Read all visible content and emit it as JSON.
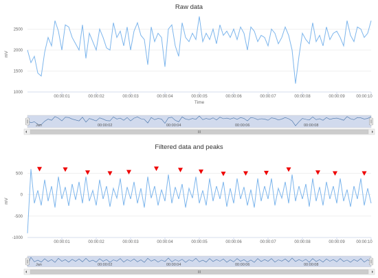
{
  "chart_data": [
    {
      "type": "line",
      "title": "Raw data",
      "xlabel": "Time",
      "ylabel": "mV",
      "ylim": [
        1000,
        2800
      ],
      "yticks": [
        1000,
        1500,
        2000,
        2500
      ],
      "x_range": [
        0,
        10
      ],
      "xticks": [
        "00:00:01",
        "00:00:02",
        "00:00:03",
        "00:00:04",
        "00:00:05",
        "00:00:06",
        "00:00:07",
        "00:00:08",
        "00:00:09",
        "00:00:10"
      ],
      "series": [
        {
          "color": "#7cb5ec",
          "x": [
            0,
            0.1,
            0.2,
            0.3,
            0.4,
            0.5,
            0.6,
            0.7,
            0.8,
            0.9,
            1.0,
            1.1,
            1.2,
            1.3,
            1.4,
            1.5,
            1.6,
            1.7,
            1.8,
            1.9,
            2.0,
            2.1,
            2.2,
            2.3,
            2.4,
            2.5,
            2.6,
            2.7,
            2.8,
            2.9,
            3.0,
            3.1,
            3.2,
            3.3,
            3.4,
            3.5,
            3.6,
            3.7,
            3.8,
            3.9,
            4.0,
            4.1,
            4.2,
            4.3,
            4.4,
            4.5,
            4.6,
            4.7,
            4.8,
            4.9,
            5.0,
            5.1,
            5.2,
            5.3,
            5.4,
            5.5,
            5.6,
            5.7,
            5.8,
            5.9,
            6.0,
            6.1,
            6.2,
            6.3,
            6.4,
            6.5,
            6.6,
            6.7,
            6.8,
            6.9,
            7.0,
            7.1,
            7.2,
            7.3,
            7.4,
            7.5,
            7.6,
            7.7,
            7.8,
            7.9,
            8.0,
            8.1,
            8.2,
            8.3,
            8.4,
            8.5,
            8.6,
            8.7,
            8.8,
            8.9,
            9.0,
            9.1,
            9.2,
            9.3,
            9.4,
            9.5,
            9.6,
            9.7,
            9.8,
            9.9,
            10.0
          ],
          "values": [
            2000,
            1700,
            1850,
            1450,
            1380,
            1950,
            2300,
            2100,
            2700,
            2450,
            2000,
            2600,
            2550,
            2300,
            2150,
            2000,
            2600,
            1800,
            2400,
            2200,
            2000,
            2500,
            2300,
            2050,
            2000,
            2650,
            2300,
            2450,
            2100,
            2550,
            2000,
            2450,
            2650,
            2350,
            2250,
            1650,
            2550,
            2200,
            2400,
            2300,
            1600,
            2500,
            2600,
            2100,
            1850,
            2650,
            2300,
            2200,
            2400,
            2250,
            2800,
            2200,
            2400,
            2250,
            2500,
            2150,
            2600,
            2350,
            2450,
            2300,
            2500,
            2250,
            2550,
            2400,
            2000,
            2550,
            2450,
            2200,
            2350,
            2300,
            2100,
            2500,
            2400,
            2150,
            2300,
            2550,
            2350,
            2000,
            1200,
            1850,
            2400,
            2250,
            2150,
            2650,
            2200,
            2350,
            2100,
            2550,
            2250,
            2400,
            2450,
            2300,
            2100,
            2700,
            2350,
            2200,
            2550,
            2500,
            2300,
            2400,
            2700
          ]
        }
      ],
      "navigator": {
        "labels": [
          "Jan",
          "00:00:02",
          "00:00:04",
          "00:00:06",
          "00:00:08"
        ]
      }
    },
    {
      "type": "line",
      "title": "Filtered data and peaks",
      "xlabel": "",
      "ylabel": "mV",
      "ylim": [
        -1000,
        700
      ],
      "yticks": [
        -1000,
        -500,
        0,
        500
      ],
      "x_range": [
        0,
        10
      ],
      "xticks": [
        "00:00:01",
        "00:00:02",
        "00:00:03",
        "00:00:04",
        "00:00:05",
        "00:00:06",
        "00:00:07",
        "00:00:08",
        "00:00:09",
        "00:00:10"
      ],
      "series": [
        {
          "color": "#7cb5ec",
          "x": [
            0,
            0.1,
            0.2,
            0.3,
            0.4,
            0.5,
            0.6,
            0.7,
            0.8,
            0.9,
            1.0,
            1.1,
            1.2,
            1.3,
            1.4,
            1.5,
            1.6,
            1.7,
            1.8,
            1.9,
            2.0,
            2.1,
            2.2,
            2.3,
            2.4,
            2.5,
            2.6,
            2.7,
            2.8,
            2.9,
            3.0,
            3.1,
            3.2,
            3.3,
            3.4,
            3.5,
            3.6,
            3.7,
            3.8,
            3.9,
            4.0,
            4.1,
            4.2,
            4.3,
            4.4,
            4.5,
            4.6,
            4.7,
            4.8,
            4.9,
            5.0,
            5.1,
            5.2,
            5.3,
            5.4,
            5.5,
            5.6,
            5.7,
            5.8,
            5.9,
            6.0,
            6.1,
            6.2,
            6.3,
            6.4,
            6.5,
            6.6,
            6.7,
            6.8,
            6.9,
            7.0,
            7.1,
            7.2,
            7.3,
            7.4,
            7.5,
            7.6,
            7.7,
            7.8,
            7.9,
            8.0,
            8.1,
            8.2,
            8.3,
            8.4,
            8.5,
            8.6,
            8.7,
            8.8,
            8.9,
            9.0,
            9.1,
            9.2,
            9.3,
            9.4,
            9.5,
            9.6,
            9.7,
            9.8,
            9.9,
            10.0
          ],
          "values": [
            -900,
            600,
            -200,
            100,
            -250,
            350,
            -150,
            200,
            -300,
            420,
            -100,
            180,
            -260,
            250,
            -120,
            300,
            -200,
            420,
            -150,
            100,
            -250,
            350,
            -100,
            200,
            -280,
            150,
            -80,
            380,
            -250,
            180,
            -100,
            300,
            -200,
            150,
            -300,
            420,
            -80,
            200,
            -250,
            120,
            -150,
            470,
            -200,
            180,
            -100,
            250,
            -300,
            150,
            -80,
            420,
            -200,
            100,
            -250,
            380,
            -150,
            200,
            -100,
            300,
            -280,
            150,
            -200,
            380,
            -100,
            180,
            -250,
            120,
            -300,
            380,
            -150,
            200,
            -100,
            380,
            -250,
            150,
            -80,
            300,
            -200,
            470,
            -150,
            200,
            -100,
            250,
            -280,
            380,
            -150,
            180,
            -250,
            300,
            -100,
            200,
            -200,
            380,
            -150,
            120,
            -280,
            200,
            -100,
            380,
            -250,
            150,
            -200
          ]
        }
      ],
      "peaks": {
        "color": "#ee0000",
        "x": [
          0.35,
          1.1,
          1.75,
          2.4,
          2.95,
          3.75,
          4.45,
          5.05,
          5.7,
          6.35,
          6.95,
          7.6,
          8.45,
          8.95,
          9.8
        ],
        "values": [
          600,
          590,
          520,
          500,
          530,
          610,
          580,
          540,
          490,
          500,
          510,
          590,
          520,
          500,
          500
        ]
      },
      "navigator": {
        "labels": [
          "Jan",
          "00:00:02",
          "00:00:04",
          "00:00:06",
          "00:00:08"
        ]
      }
    }
  ]
}
